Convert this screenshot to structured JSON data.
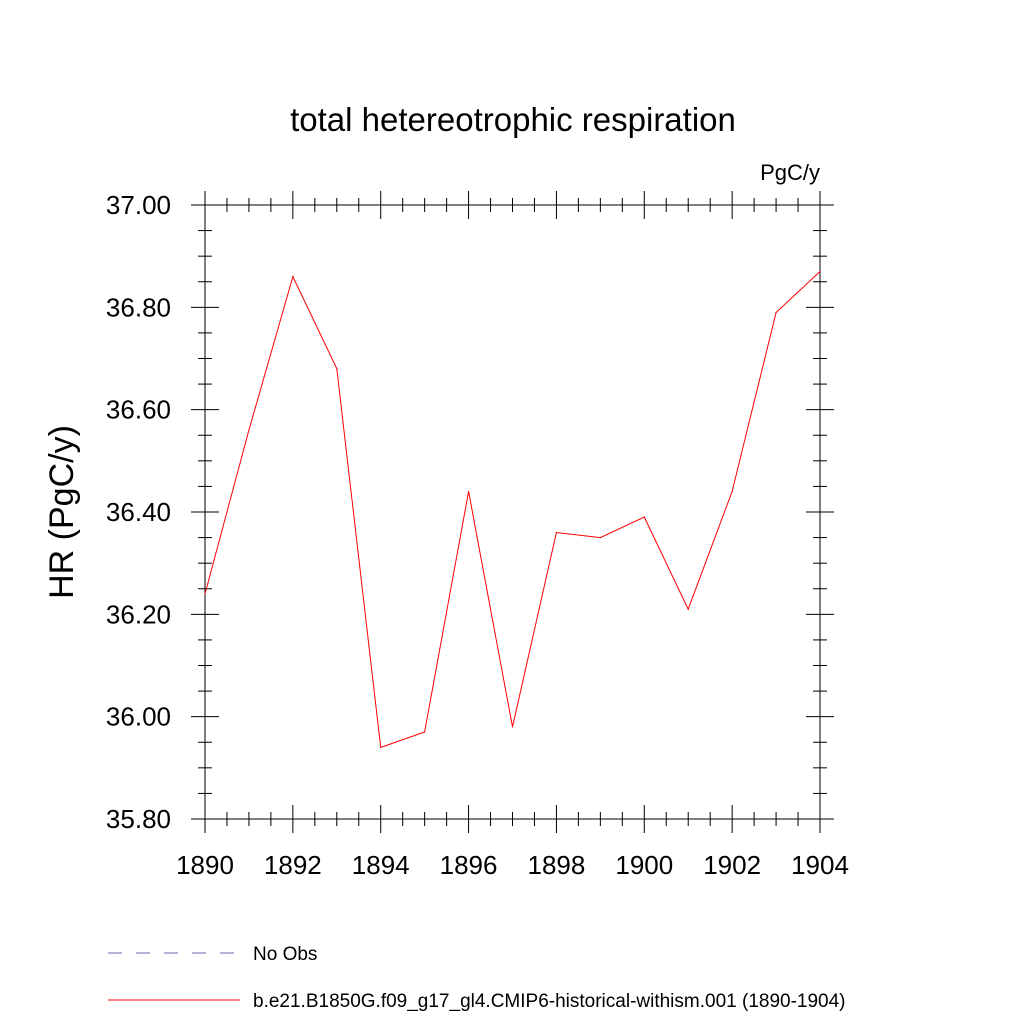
{
  "chart_data": {
    "type": "line",
    "title": "total hetereotrophic respiration",
    "units_label": "PgC/y",
    "ylabel": "HR  (PgC/y)",
    "xlabel": "",
    "xlim": [
      1890,
      1904
    ],
    "ylim": [
      35.8,
      37.0
    ],
    "xticks": [
      "1890",
      "1892",
      "1894",
      "1896",
      "1898",
      "1900",
      "1902",
      "1904"
    ],
    "yticks": [
      "35.80",
      "36.00",
      "36.20",
      "36.40",
      "36.60",
      "36.80",
      "37.00"
    ],
    "grid": false,
    "legend_position": "bottom-left",
    "series": [
      {
        "name": "b.e21.B1850G.f09_g17_gl4.CMIP6-historical-withism.001 (1890-1904)",
        "color": "#ff0000",
        "style": "solid",
        "x": [
          1890,
          1891,
          1892,
          1893,
          1894,
          1895,
          1896,
          1897,
          1898,
          1899,
          1900,
          1901,
          1902,
          1903,
          1904
        ],
        "y": [
          36.24,
          36.56,
          36.86,
          36.68,
          35.94,
          35.97,
          36.44,
          35.98,
          36.36,
          36.35,
          36.39,
          36.21,
          36.44,
          36.79,
          36.87
        ]
      }
    ],
    "legend": [
      {
        "label": "No Obs",
        "color": "#6f5fa8",
        "style": "dashed"
      },
      {
        "label": "b.e21.B1850G.f09_g17_gl4.CMIP6-historical-withism.001 (1890-1904)",
        "color": "#ff0000",
        "style": "solid"
      }
    ]
  }
}
